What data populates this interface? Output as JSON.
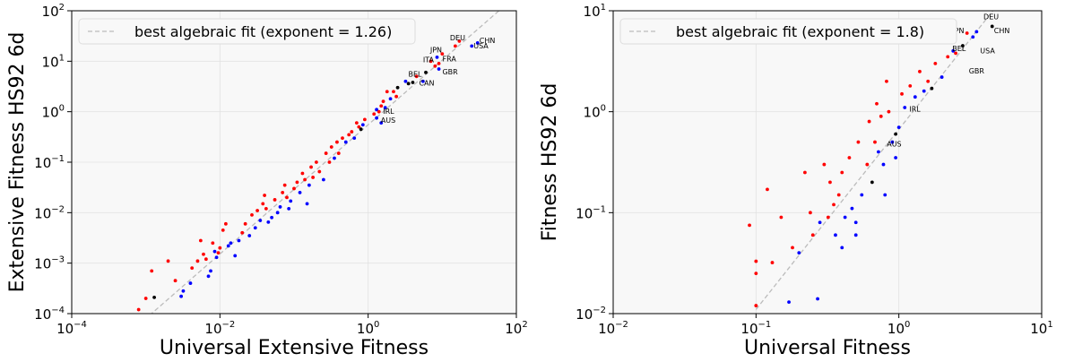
{
  "chart_data": [
    {
      "type": "scatter",
      "xlabel": "Universal Extensive Fitness",
      "ylabel": "Extensive Fitness HS92 6d",
      "xscale": "log",
      "yscale": "log",
      "xlim": [
        0.0001,
        100
      ],
      "ylim": [
        0.0001,
        100
      ],
      "xticks": [
        {
          "v": 0.0001,
          "base": "10",
          "exp": "−4"
        },
        {
          "v": 0.01,
          "base": "10",
          "exp": "−2"
        },
        {
          "v": 1,
          "base": "10",
          "exp": "0"
        },
        {
          "v": 100,
          "base": "10",
          "exp": "2"
        }
      ],
      "yticks": [
        {
          "v": 0.0001,
          "base": "10",
          "exp": "−4"
        },
        {
          "v": 0.001,
          "base": "10",
          "exp": "−3"
        },
        {
          "v": 0.01,
          "base": "10",
          "exp": "−2"
        },
        {
          "v": 0.1,
          "base": "10",
          "exp": "−1"
        },
        {
          "v": 1,
          "base": "10",
          "exp": "0"
        },
        {
          "v": 10,
          "base": "10",
          "exp": "1"
        },
        {
          "v": 100,
          "base": "10",
          "exp": "2"
        }
      ],
      "grid": true,
      "legend": {
        "position": "top-left",
        "label": "best algebraic fit (exponent = 1.26)"
      },
      "fit": {
        "exponent": 1.26,
        "x_from": 0.0008,
        "y_from": 6e-05,
        "x_to": 100,
        "y_to": 200
      },
      "colors": {
        "red": "#ff0000",
        "blue": "#0000ff",
        "black": "#000000",
        "fit": "#bbbbbb",
        "panel": "#f8f8f8"
      },
      "points": [
        [
          0.001,
          0.0002,
          "red"
        ],
        [
          0.0012,
          0.0007,
          "red"
        ],
        [
          0.0013,
          0.00021,
          "black"
        ],
        [
          0.0008,
          0.00012,
          "red"
        ],
        [
          0.002,
          0.0011,
          "red"
        ],
        [
          0.0025,
          0.00045,
          "red"
        ],
        [
          0.003,
          0.00022,
          "blue"
        ],
        [
          0.0032,
          0.00028,
          "blue"
        ],
        [
          0.004,
          0.0004,
          "blue"
        ],
        [
          0.0042,
          0.0008,
          "red"
        ],
        [
          0.005,
          0.0011,
          "red"
        ],
        [
          0.0055,
          0.0028,
          "red"
        ],
        [
          0.006,
          0.0015,
          "red"
        ],
        [
          0.0065,
          0.0012,
          "red"
        ],
        [
          0.007,
          0.00055,
          "blue"
        ],
        [
          0.0075,
          0.0007,
          "blue"
        ],
        [
          0.008,
          0.0025,
          "red"
        ],
        [
          0.0085,
          0.0017,
          "blue"
        ],
        [
          0.009,
          0.0013,
          "blue"
        ],
        [
          0.0095,
          0.0016,
          "red"
        ],
        [
          0.01,
          0.002,
          "red"
        ],
        [
          0.011,
          0.0045,
          "red"
        ],
        [
          0.012,
          0.006,
          "red"
        ],
        [
          0.013,
          0.0022,
          "blue"
        ],
        [
          0.014,
          0.0025,
          "blue"
        ],
        [
          0.016,
          0.0014,
          "blue"
        ],
        [
          0.018,
          0.0028,
          "blue"
        ],
        [
          0.02,
          0.004,
          "red"
        ],
        [
          0.022,
          0.006,
          "red"
        ],
        [
          0.025,
          0.0035,
          "blue"
        ],
        [
          0.027,
          0.009,
          "red"
        ],
        [
          0.03,
          0.005,
          "blue"
        ],
        [
          0.032,
          0.011,
          "red"
        ],
        [
          0.035,
          0.007,
          "blue"
        ],
        [
          0.038,
          0.015,
          "red"
        ],
        [
          0.04,
          0.022,
          "red"
        ],
        [
          0.042,
          0.012,
          "red"
        ],
        [
          0.045,
          0.0065,
          "blue"
        ],
        [
          0.05,
          0.008,
          "blue"
        ],
        [
          0.055,
          0.018,
          "red"
        ],
        [
          0.06,
          0.01,
          "blue"
        ],
        [
          0.065,
          0.013,
          "blue"
        ],
        [
          0.07,
          0.025,
          "red"
        ],
        [
          0.075,
          0.035,
          "red"
        ],
        [
          0.08,
          0.02,
          "red"
        ],
        [
          0.085,
          0.012,
          "blue"
        ],
        [
          0.09,
          0.017,
          "blue"
        ],
        [
          0.1,
          0.03,
          "red"
        ],
        [
          0.11,
          0.04,
          "red"
        ],
        [
          0.12,
          0.025,
          "blue"
        ],
        [
          0.13,
          0.06,
          "red"
        ],
        [
          0.14,
          0.045,
          "red"
        ],
        [
          0.15,
          0.015,
          "blue"
        ],
        [
          0.16,
          0.035,
          "blue"
        ],
        [
          0.17,
          0.08,
          "red"
        ],
        [
          0.18,
          0.05,
          "red"
        ],
        [
          0.2,
          0.1,
          "red"
        ],
        [
          0.22,
          0.065,
          "red"
        ],
        [
          0.25,
          0.045,
          "blue"
        ],
        [
          0.27,
          0.15,
          "red"
        ],
        [
          0.3,
          0.1,
          "red"
        ],
        [
          0.32,
          0.2,
          "red"
        ],
        [
          0.35,
          0.12,
          "blue"
        ],
        [
          0.38,
          0.25,
          "red"
        ],
        [
          0.4,
          0.15,
          "red"
        ],
        [
          0.45,
          0.3,
          "red"
        ],
        [
          0.5,
          0.25,
          "blue"
        ],
        [
          0.55,
          0.35,
          "red"
        ],
        [
          0.6,
          0.4,
          "red"
        ],
        [
          0.65,
          0.3,
          "blue"
        ],
        [
          0.7,
          0.6,
          "red"
        ],
        [
          0.75,
          0.5,
          "red"
        ],
        [
          0.8,
          0.45,
          "black"
        ],
        [
          0.85,
          0.55,
          "blue"
        ],
        [
          0.9,
          0.7,
          "red"
        ],
        [
          1.2,
          0.9,
          "red"
        ],
        [
          1.3,
          1.1,
          "blue"
        ],
        [
          1.4,
          1.0,
          "red"
        ],
        [
          1.5,
          1.3,
          "red"
        ],
        [
          1.6,
          1.6,
          "red"
        ],
        [
          1.7,
          1.2,
          "blue"
        ],
        [
          1.8,
          2.5,
          "red"
        ],
        [
          2.0,
          1.8,
          "blue"
        ],
        [
          2.2,
          2.5,
          "red"
        ],
        [
          2.4,
          2.0,
          "red"
        ],
        [
          2.5,
          3.0,
          "black"
        ],
        [
          3.2,
          4.0,
          "blue"
        ],
        [
          3.5,
          3.6,
          "black"
        ],
        [
          4.0,
          3.8,
          "black"
        ],
        [
          4.5,
          5.0,
          "red"
        ],
        [
          5.5,
          4.0,
          "blue"
        ],
        [
          6.0,
          6.0,
          "black"
        ],
        [
          7.0,
          10.0,
          "red"
        ],
        [
          8.0,
          8.0,
          "red"
        ],
        [
          9.0,
          9.0,
          "red"
        ],
        [
          8.5,
          12.0,
          "blue"
        ],
        [
          10.0,
          14.0,
          "red"
        ],
        [
          9.0,
          7.0,
          "blue"
        ],
        [
          17.0,
          25.0,
          "red"
        ],
        [
          15.0,
          20.0,
          "red"
        ],
        [
          25.0,
          20.0,
          "blue"
        ],
        [
          30.0,
          23.0,
          "blue"
        ],
        [
          1.3,
          0.75,
          "blue"
        ],
        [
          1.5,
          0.6,
          "blue"
        ]
      ],
      "labels": [
        {
          "text": "CHN",
          "x": 30,
          "y": 23
        },
        {
          "text": "USA",
          "x": 25,
          "y": 18
        },
        {
          "text": "DEU",
          "x": 12,
          "y": 26
        },
        {
          "text": "JPN",
          "x": 6.5,
          "y": 15
        },
        {
          "text": "ITA",
          "x": 5.2,
          "y": 9.5
        },
        {
          "text": "FRA",
          "x": 9.5,
          "y": 10
        },
        {
          "text": "GBR",
          "x": 9.5,
          "y": 5.5
        },
        {
          "text": "BEL",
          "x": 3.3,
          "y": 5
        },
        {
          "text": "CAN",
          "x": 4.6,
          "y": 3.3
        },
        {
          "text": "IRL",
          "x": 1.5,
          "y": 0.9
        },
        {
          "text": "AUS",
          "x": 1.4,
          "y": 0.6
        }
      ]
    },
    {
      "type": "scatter",
      "xlabel": "Universal Fitness",
      "ylabel": "Fitness HS92 6d",
      "xscale": "log",
      "yscale": "log",
      "xlim": [
        0.01,
        10
      ],
      "ylim": [
        0.01,
        10
      ],
      "xticks": [
        {
          "v": 0.01,
          "base": "10",
          "exp": "−2"
        },
        {
          "v": 0.1,
          "base": "10",
          "exp": "−1"
        },
        {
          "v": 1,
          "base": "10",
          "exp": "0"
        },
        {
          "v": 10,
          "base": "10",
          "exp": "1"
        }
      ],
      "yticks": [
        {
          "v": 0.01,
          "base": "10",
          "exp": "−2"
        },
        {
          "v": 0.1,
          "base": "10",
          "exp": "−1"
        },
        {
          "v": 1,
          "base": "10",
          "exp": "0"
        },
        {
          "v": 10,
          "base": "10",
          "exp": "1"
        }
      ],
      "grid": true,
      "legend": {
        "position": "top-left",
        "label": "best algebraic fit (exponent = 1.8)"
      },
      "fit": {
        "exponent": 1.8,
        "x_from": 0.1,
        "y_from": 0.011,
        "x_to": 5.5,
        "y_to": 14
      },
      "colors": {
        "red": "#ff0000",
        "blue": "#0000ff",
        "black": "#000000",
        "fit": "#bbbbbb",
        "panel": "#f8f8f8"
      },
      "points": [
        [
          0.1,
          0.012,
          "red"
        ],
        [
          0.1,
          0.033,
          "red"
        ],
        [
          0.1,
          0.025,
          "red"
        ],
        [
          0.09,
          0.075,
          "red"
        ],
        [
          0.12,
          0.17,
          "red"
        ],
        [
          0.13,
          0.032,
          "red"
        ],
        [
          0.15,
          0.09,
          "red"
        ],
        [
          0.18,
          0.045,
          "red"
        ],
        [
          0.17,
          0.013,
          "blue"
        ],
        [
          0.2,
          0.04,
          "blue"
        ],
        [
          0.22,
          0.25,
          "red"
        ],
        [
          0.24,
          0.1,
          "red"
        ],
        [
          0.25,
          0.06,
          "red"
        ],
        [
          0.27,
          0.014,
          "blue"
        ],
        [
          0.28,
          0.08,
          "blue"
        ],
        [
          0.3,
          0.3,
          "red"
        ],
        [
          0.32,
          0.09,
          "red"
        ],
        [
          0.33,
          0.2,
          "red"
        ],
        [
          0.35,
          0.12,
          "red"
        ],
        [
          0.36,
          0.06,
          "blue"
        ],
        [
          0.38,
          0.15,
          "red"
        ],
        [
          0.4,
          0.25,
          "red"
        ],
        [
          0.42,
          0.09,
          "blue"
        ],
        [
          0.45,
          0.35,
          "red"
        ],
        [
          0.47,
          0.11,
          "blue"
        ],
        [
          0.5,
          0.06,
          "blue"
        ],
        [
          0.52,
          0.5,
          "red"
        ],
        [
          0.55,
          0.15,
          "blue"
        ],
        [
          0.6,
          0.3,
          "red"
        ],
        [
          0.62,
          0.8,
          "red"
        ],
        [
          0.65,
          0.2,
          "black"
        ],
        [
          0.68,
          0.5,
          "red"
        ],
        [
          0.7,
          1.2,
          "red"
        ],
        [
          0.72,
          0.4,
          "blue"
        ],
        [
          0.75,
          0.9,
          "red"
        ],
        [
          0.78,
          0.3,
          "blue"
        ],
        [
          0.8,
          0.15,
          "blue"
        ],
        [
          0.82,
          2.0,
          "red"
        ],
        [
          0.85,
          1.0,
          "red"
        ],
        [
          0.9,
          0.5,
          "blue"
        ],
        [
          0.95,
          0.6,
          "black"
        ],
        [
          1.0,
          0.7,
          "blue"
        ],
        [
          1.05,
          1.5,
          "red"
        ],
        [
          1.1,
          1.1,
          "blue"
        ],
        [
          1.2,
          1.8,
          "red"
        ],
        [
          1.3,
          1.4,
          "blue"
        ],
        [
          1.4,
          2.5,
          "red"
        ],
        [
          1.5,
          1.6,
          "blue"
        ],
        [
          1.6,
          2.0,
          "red"
        ],
        [
          1.7,
          1.7,
          "black"
        ],
        [
          1.8,
          3.0,
          "red"
        ],
        [
          2.0,
          2.2,
          "blue"
        ],
        [
          2.2,
          3.5,
          "red"
        ],
        [
          2.4,
          4.0,
          "blue"
        ],
        [
          2.5,
          3.8,
          "red"
        ],
        [
          2.8,
          4.5,
          "black"
        ],
        [
          3.0,
          6.0,
          "red"
        ],
        [
          3.3,
          5.5,
          "blue"
        ],
        [
          3.5,
          6.2,
          "blue"
        ],
        [
          4.5,
          7.0,
          "black"
        ],
        [
          0.5,
          0.08,
          "blue"
        ],
        [
          0.4,
          0.045,
          "blue"
        ],
        [
          0.95,
          0.35,
          "blue"
        ]
      ],
      "labels": [
        {
          "text": "DEU",
          "x": 3.8,
          "y": 8.2
        },
        {
          "text": "JPN",
          "x": 2.3,
          "y": 6.0
        },
        {
          "text": "CHN",
          "x": 4.5,
          "y": 6.0
        },
        {
          "text": "USA",
          "x": 3.6,
          "y": 3.8
        },
        {
          "text": "BEL",
          "x": 2.3,
          "y": 4.0
        },
        {
          "text": "GBR",
          "x": 3.0,
          "y": 2.4
        },
        {
          "text": "IRL",
          "x": 1.15,
          "y": 1.0
        },
        {
          "text": "AUS",
          "x": 0.8,
          "y": 0.45
        }
      ]
    }
  ]
}
